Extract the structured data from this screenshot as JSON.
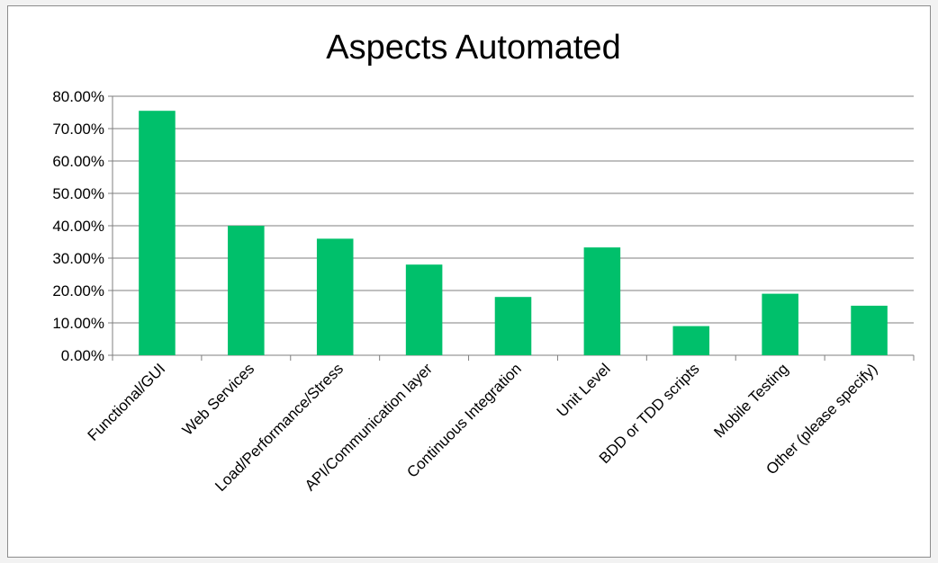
{
  "chart_data": {
    "type": "bar",
    "title": "Aspects Automated",
    "xlabel": "",
    "ylabel": "",
    "categories": [
      "Functional/GUI",
      "Web Services",
      "Load/Performance/Stress",
      "API/Communication layer",
      "Continuous Integration",
      "Unit Level",
      "BDD or TDD scripts",
      "Mobile Testing",
      "Other (please specify)"
    ],
    "values": [
      75.5,
      40.0,
      36.0,
      28.0,
      18.0,
      33.3,
      9.0,
      19.0,
      15.3
    ],
    "ylim": [
      0,
      80
    ],
    "yticks": [
      "0.00%",
      "10.00%",
      "20.00%",
      "30.00%",
      "40.00%",
      "50.00%",
      "60.00%",
      "70.00%",
      "80.00%"
    ],
    "grid": true,
    "legend": "none",
    "bar_color": "#00c06b"
  }
}
